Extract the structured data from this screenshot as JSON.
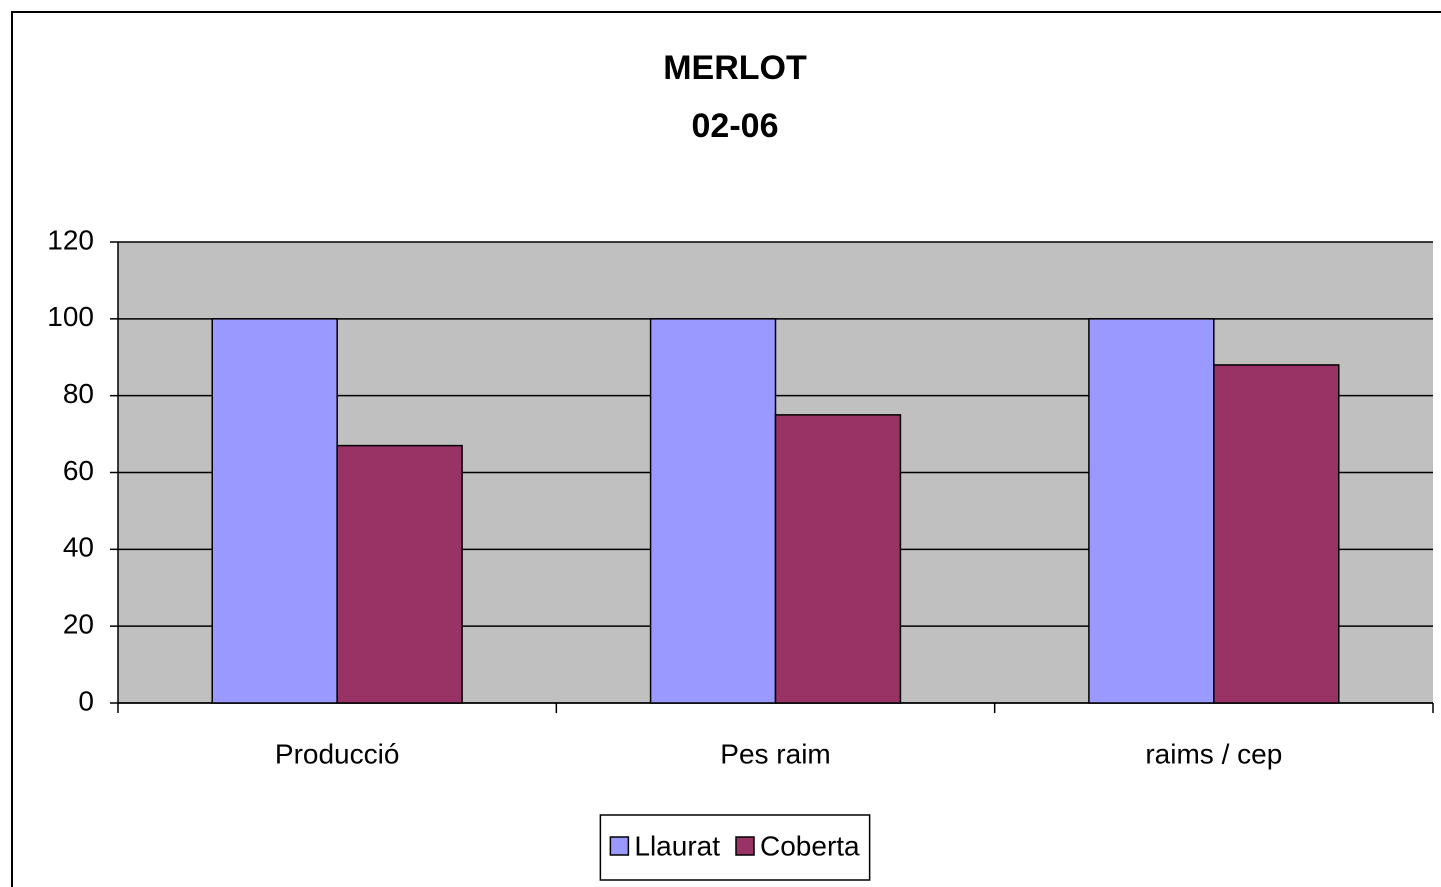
{
  "chart_data": {
    "type": "bar",
    "title": "MERLOT",
    "subtitle": "02-06",
    "categories": [
      "Producció",
      "Pes raim",
      "raims / cep"
    ],
    "series": [
      {
        "name": "Llaurat",
        "color": "#9999ff",
        "values": [
          100,
          100,
          100
        ]
      },
      {
        "name": "Coberta",
        "color": "#993366",
        "values": [
          67,
          75,
          88
        ]
      }
    ],
    "ylim": [
      0,
      120
    ],
    "yticks": [
      0,
      20,
      40,
      60,
      80,
      100,
      120
    ],
    "grid": true,
    "legend": "bottom"
  }
}
